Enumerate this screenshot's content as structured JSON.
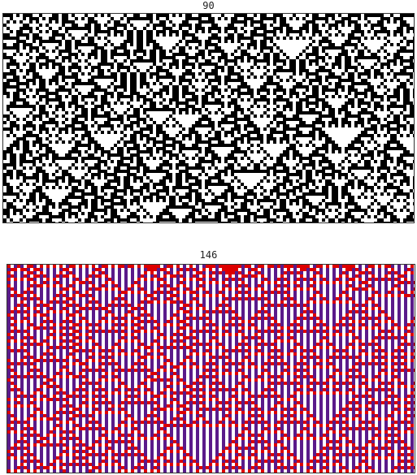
{
  "panels": [
    {
      "title": "90",
      "colors": {
        "on": "#000000",
        "off": "#ffffff",
        "frame": "#333333"
      }
    },
    {
      "title": "146",
      "colors": {
        "on": "#dd0000",
        "stripe": "#5a1a8a",
        "dots": "#000000",
        "off": "#ffffff",
        "frame": "#333333"
      }
    }
  ]
}
